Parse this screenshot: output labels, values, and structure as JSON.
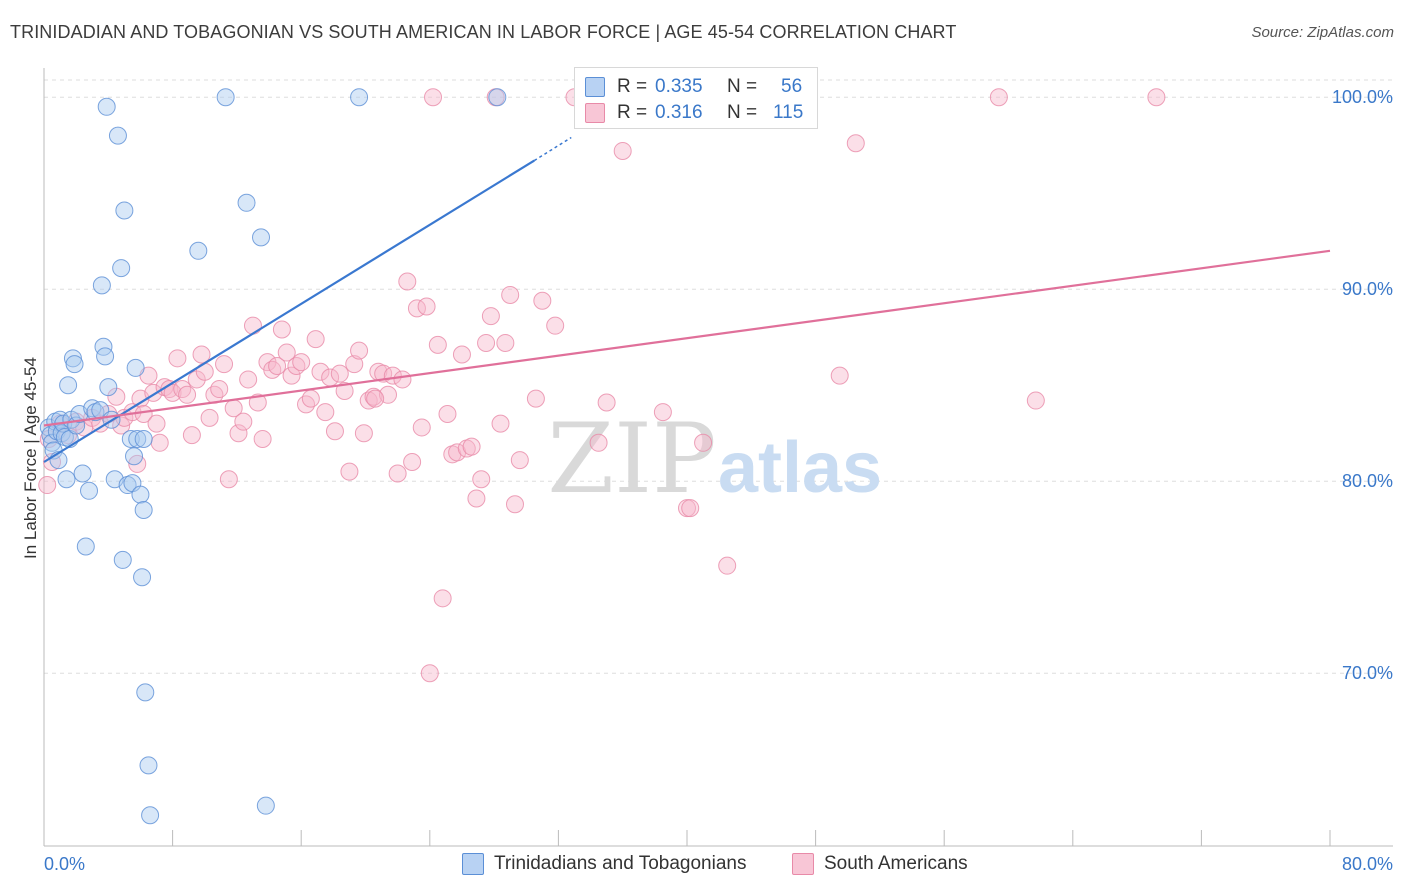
{
  "header": {
    "title": "TRINIDADIAN AND TOBAGONIAN VS SOUTH AMERICAN IN LABOR FORCE | AGE 45-54 CORRELATION CHART",
    "source": "Source: ZipAtlas.com"
  },
  "legend": {
    "rows": [
      {
        "r_label": "R =",
        "r_value": "0.335",
        "n_label": "N =",
        "n_value": "56"
      },
      {
        "r_label": "R =",
        "r_value": "0.316",
        "n_label": "N =",
        "n_value": "115"
      }
    ]
  },
  "bottom_legend": {
    "items": [
      {
        "label": "Trinidadians and Tobagonians"
      },
      {
        "label": "South Americans"
      }
    ]
  },
  "watermark": {
    "zip": "ZIP",
    "atlas": "atlas"
  },
  "colors": {
    "blue_fill": "#a9c9f0",
    "blue_stroke": "#5b8fd6",
    "blue_line": "#3a78d0",
    "pink_fill": "#f6b8cc",
    "pink_stroke": "#e88aa8",
    "pink_line": "#e0709a",
    "tick_label": "#3a78c9",
    "grid": "#dddddd",
    "axis": "#bbbbbb"
  },
  "chart_data": {
    "type": "scatter",
    "title": "TRINIDADIAN AND TOBAGONIAN VS SOUTH AMERICAN IN LABOR FORCE | AGE 45-54 CORRELATION CHART",
    "xlabel": "",
    "ylabel": "In Labor Force | Age 45-54",
    "xlim": [
      0,
      80
    ],
    "ylim": [
      61,
      101
    ],
    "x_tick_labels": [
      {
        "value": 0,
        "label": "0.0%"
      },
      {
        "value": 80,
        "label": "80.0%"
      }
    ],
    "y_tick_labels": [
      {
        "value": 70,
        "label": "70.0%"
      },
      {
        "value": 80,
        "label": "80.0%"
      },
      {
        "value": 90,
        "label": "90.0%"
      },
      {
        "value": 100,
        "label": "100.0%"
      }
    ],
    "x_minor_ticks": [
      0,
      8,
      16,
      24,
      32,
      40,
      48,
      56,
      64,
      72,
      80
    ],
    "series": [
      {
        "name": "Trinidadians and Tobagonians",
        "color": "blue",
        "R": 0.335,
        "N": 56,
        "trend": {
          "x": [
            0,
            30.5
          ],
          "y": [
            81.0,
            96.7
          ],
          "dashed_to": {
            "x": 32.8,
            "y": 97.9
          }
        },
        "points": [
          [
            0.3,
            82.8
          ],
          [
            0.4,
            82.4
          ],
          [
            0.5,
            82.0
          ],
          [
            0.6,
            81.6
          ],
          [
            0.7,
            83.1
          ],
          [
            0.8,
            82.6
          ],
          [
            0.9,
            81.1
          ],
          [
            1.0,
            83.2
          ],
          [
            1.1,
            82.5
          ],
          [
            1.2,
            83.0
          ],
          [
            1.3,
            82.3
          ],
          [
            1.4,
            80.1
          ],
          [
            1.5,
            85.0
          ],
          [
            1.6,
            82.2
          ],
          [
            1.7,
            83.2
          ],
          [
            1.8,
            86.4
          ],
          [
            1.9,
            86.1
          ],
          [
            2.0,
            82.9
          ],
          [
            2.2,
            83.5
          ],
          [
            2.4,
            80.4
          ],
          [
            2.6,
            76.6
          ],
          [
            2.8,
            79.5
          ],
          [
            3.0,
            83.8
          ],
          [
            3.2,
            83.6
          ],
          [
            3.5,
            83.7
          ],
          [
            3.6,
            90.2
          ],
          [
            3.7,
            87.0
          ],
          [
            3.8,
            86.5
          ],
          [
            3.9,
            99.5
          ],
          [
            4.0,
            84.9
          ],
          [
            4.2,
            83.2
          ],
          [
            4.4,
            80.1
          ],
          [
            4.6,
            98.0
          ],
          [
            4.8,
            91.1
          ],
          [
            4.9,
            75.9
          ],
          [
            5.0,
            94.1
          ],
          [
            5.2,
            79.8
          ],
          [
            5.4,
            82.2
          ],
          [
            5.5,
            79.9
          ],
          [
            5.6,
            81.3
          ],
          [
            5.7,
            85.9
          ],
          [
            5.8,
            82.2
          ],
          [
            6.2,
            82.2
          ],
          [
            6.5,
            65.2
          ],
          [
            6.0,
            79.3
          ],
          [
            6.1,
            75.0
          ],
          [
            6.2,
            78.5
          ],
          [
            6.3,
            69.0
          ],
          [
            6.6,
            62.6
          ],
          [
            9.6,
            92.0
          ],
          [
            11.3,
            100.0
          ],
          [
            12.6,
            94.5
          ],
          [
            13.5,
            92.7
          ],
          [
            13.8,
            63.1
          ],
          [
            19.6,
            100.0
          ],
          [
            28.2,
            100.0
          ]
        ]
      },
      {
        "name": "South Americans",
        "color": "pink",
        "R": 0.316,
        "N": 115,
        "trend": {
          "x": [
            0,
            80
          ],
          "y": [
            82.9,
            92.0
          ]
        },
        "points": [
          [
            0.2,
            79.8
          ],
          [
            0.3,
            82.2
          ],
          [
            0.5,
            81.0
          ],
          [
            1.0,
            83.0
          ],
          [
            1.5,
            82.4
          ],
          [
            2.0,
            83.1
          ],
          [
            2.5,
            82.8
          ],
          [
            3.0,
            83.3
          ],
          [
            3.5,
            83.0
          ],
          [
            4.0,
            83.5
          ],
          [
            4.5,
            84.4
          ],
          [
            4.8,
            82.9
          ],
          [
            5.0,
            83.3
          ],
          [
            5.5,
            83.6
          ],
          [
            5.8,
            80.9
          ],
          [
            6.0,
            84.3
          ],
          [
            6.2,
            83.5
          ],
          [
            6.5,
            85.5
          ],
          [
            6.8,
            84.6
          ],
          [
            7.0,
            83.0
          ],
          [
            7.2,
            82.0
          ],
          [
            7.5,
            84.9
          ],
          [
            7.8,
            84.8
          ],
          [
            8.0,
            84.6
          ],
          [
            8.3,
            86.4
          ],
          [
            8.6,
            84.8
          ],
          [
            8.9,
            84.5
          ],
          [
            9.2,
            82.4
          ],
          [
            9.5,
            85.3
          ],
          [
            9.8,
            86.6
          ],
          [
            10.0,
            85.7
          ],
          [
            10.3,
            83.3
          ],
          [
            10.6,
            84.5
          ],
          [
            10.9,
            84.8
          ],
          [
            11.2,
            86.1
          ],
          [
            11.5,
            80.1
          ],
          [
            11.8,
            83.8
          ],
          [
            12.1,
            82.5
          ],
          [
            12.4,
            83.1
          ],
          [
            12.7,
            85.3
          ],
          [
            13.0,
            88.1
          ],
          [
            13.3,
            84.1
          ],
          [
            13.6,
            82.2
          ],
          [
            13.9,
            86.2
          ],
          [
            14.2,
            85.8
          ],
          [
            14.5,
            86.0
          ],
          [
            14.8,
            87.9
          ],
          [
            15.1,
            86.7
          ],
          [
            15.4,
            85.5
          ],
          [
            15.7,
            86.0
          ],
          [
            16.0,
            86.2
          ],
          [
            16.3,
            84.0
          ],
          [
            16.6,
            84.3
          ],
          [
            16.9,
            87.4
          ],
          [
            17.2,
            85.7
          ],
          [
            17.5,
            83.6
          ],
          [
            17.8,
            85.4
          ],
          [
            18.1,
            82.6
          ],
          [
            18.4,
            85.6
          ],
          [
            18.7,
            84.7
          ],
          [
            19.0,
            80.5
          ],
          [
            19.3,
            86.1
          ],
          [
            19.6,
            86.8
          ],
          [
            19.9,
            82.5
          ],
          [
            20.2,
            84.2
          ],
          [
            20.5,
            84.4
          ],
          [
            20.8,
            85.7
          ],
          [
            21.1,
            85.6
          ],
          [
            21.4,
            84.5
          ],
          [
            21.7,
            85.5
          ],
          [
            22.0,
            80.4
          ],
          [
            22.3,
            85.3
          ],
          [
            22.6,
            90.4
          ],
          [
            22.9,
            81.0
          ],
          [
            23.2,
            89.0
          ],
          [
            23.5,
            82.8
          ],
          [
            23.8,
            89.1
          ],
          [
            24.0,
            70.0
          ],
          [
            24.2,
            100.0
          ],
          [
            24.5,
            87.1
          ],
          [
            24.8,
            73.9
          ],
          [
            25.1,
            83.5
          ],
          [
            25.4,
            81.4
          ],
          [
            25.7,
            81.5
          ],
          [
            26.0,
            86.6
          ],
          [
            26.3,
            81.7
          ],
          [
            26.6,
            81.8
          ],
          [
            26.9,
            79.1
          ],
          [
            27.2,
            80.1
          ],
          [
            27.5,
            87.2
          ],
          [
            27.8,
            88.6
          ],
          [
            28.1,
            100.0
          ],
          [
            28.4,
            83.0
          ],
          [
            28.7,
            87.2
          ],
          [
            29.0,
            89.7
          ],
          [
            29.3,
            78.8
          ],
          [
            29.6,
            81.1
          ],
          [
            30.6,
            84.3
          ],
          [
            31.0,
            89.4
          ],
          [
            31.8,
            88.1
          ],
          [
            33.0,
            100.0
          ],
          [
            34.5,
            82.0
          ],
          [
            35.0,
            84.1
          ],
          [
            36.0,
            97.2
          ],
          [
            38.5,
            83.6
          ],
          [
            40.0,
            78.6
          ],
          [
            40.2,
            78.6
          ],
          [
            41.0,
            82.0
          ],
          [
            42.5,
            75.6
          ],
          [
            49.5,
            85.5
          ],
          [
            50.5,
            97.6
          ],
          [
            59.4,
            100.0
          ],
          [
            61.7,
            84.2
          ],
          [
            69.2,
            100.0
          ],
          [
            20.6,
            84.3
          ]
        ]
      }
    ]
  }
}
